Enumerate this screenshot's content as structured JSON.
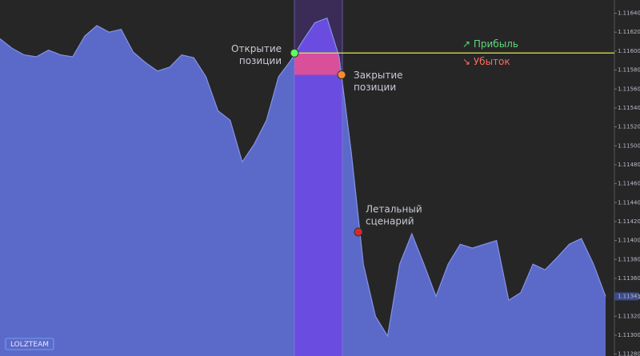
{
  "chart_data": {
    "type": "area",
    "values": [
      1.11613,
      1.11603,
      1.11596,
      1.11594,
      1.11601,
      1.11596,
      1.11594,
      1.11616,
      1.11627,
      1.1162,
      1.11623,
      1.11599,
      1.11588,
      1.11579,
      1.11583,
      1.11596,
      1.11593,
      1.11573,
      1.11537,
      1.11527,
      1.11483,
      1.11502,
      1.11527,
      1.11573,
      1.1159,
      1.11611,
      1.1163,
      1.11635,
      1.11594,
      1.11493,
      1.11375,
      1.1132,
      1.11299,
      1.11375,
      1.11407,
      1.11375,
      1.11341,
      1.11375,
      1.11396,
      1.11392,
      1.11396,
      1.114,
      1.11337,
      1.11345,
      1.11375,
      1.11369,
      1.11382,
      1.11396,
      1.11402,
      1.11375,
      1.11341
    ],
    "color": "#5b6ac8",
    "ylim": [
      1.11278,
      1.11654
    ],
    "yticks": [
      {
        "value": 1.1164,
        "label": "1.11640"
      },
      {
        "value": 1.1162,
        "label": "1.11620"
      },
      {
        "value": 1.116,
        "label": "1.11600"
      },
      {
        "value": 1.1158,
        "label": "1.11580"
      },
      {
        "value": 1.1156,
        "label": "1.11560"
      },
      {
        "value": 1.1154,
        "label": "1.11540"
      },
      {
        "value": 1.1152,
        "label": "1.11520"
      },
      {
        "value": 1.115,
        "label": "1.11500"
      },
      {
        "value": 1.1148,
        "label": "1.11480"
      },
      {
        "value": 1.1146,
        "label": "1.11460"
      },
      {
        "value": 1.1144,
        "label": "1.11440"
      },
      {
        "value": 1.1142,
        "label": "1.11420"
      },
      {
        "value": 1.114,
        "label": "1.11400"
      },
      {
        "value": 1.1138,
        "label": "1.11380"
      },
      {
        "value": 1.1136,
        "label": "1.11360"
      },
      {
        "value": 1.1134,
        "label": "1.11340"
      },
      {
        "value": 1.1132,
        "label": "1.11320"
      },
      {
        "value": 1.113,
        "label": "1.11300"
      },
      {
        "value": 1.1128,
        "label": "1.11280"
      }
    ],
    "current_price": {
      "value": 1.11341,
      "label": "1.11341"
    },
    "open": {
      "value": 1.11598,
      "label": [
        "Открытие",
        "позиции"
      ],
      "color": "#5cff5c"
    },
    "close": {
      "value": 1.11575,
      "label": [
        "Закрытие",
        "позиции"
      ],
      "color": "#ff8c2a"
    },
    "lethal": {
      "value": 1.11409,
      "label": [
        "Летальный",
        "сценарий"
      ],
      "color": "#d42a2a"
    },
    "profit": {
      "label": "↗ Прибыль",
      "color": "#5fd87a"
    },
    "loss": {
      "label": "↘ Убыток",
      "color": "#ff6a5a"
    },
    "watermark": "LOLZTEAM"
  }
}
